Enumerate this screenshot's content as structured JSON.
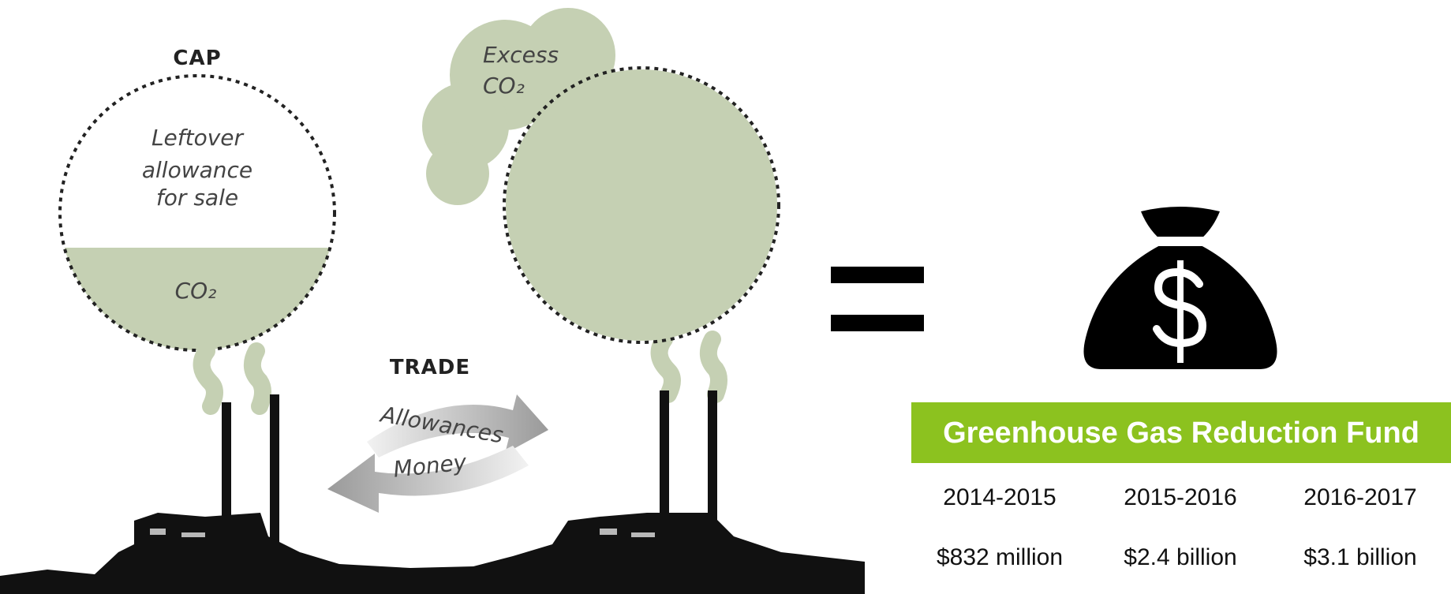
{
  "cap_label": "CAP",
  "left_circle": {
    "lines": [
      "Leftover",
      "allowance",
      "for sale"
    ],
    "gas": "CO₂"
  },
  "right_circle": {
    "lines": [
      "Excess",
      "CO₂"
    ]
  },
  "trade": {
    "title": "TRADE",
    "arrows": [
      "Allowances",
      "Money"
    ]
  },
  "fund": {
    "title": "Greenhouse Gas Reduction Fund",
    "table": {
      "header": [
        "2014-2015",
        "2015-2016",
        "2016-2017"
      ],
      "rows": [
        [
          "$832 million",
          "$2.4 billion",
          "$3.1 billion"
        ]
      ]
    }
  }
}
